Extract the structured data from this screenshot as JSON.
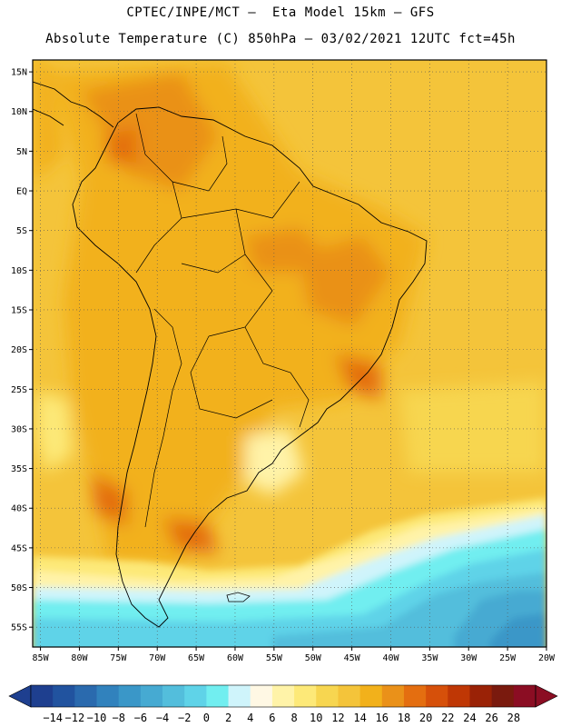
{
  "title": {
    "line1": "CPTEC/INPE/MCT –  Eta Model 15km – GFS",
    "line2": "Absolute Temperature (C) 850hPa – 03/02/2021 12UTC fct=45h"
  },
  "map": {
    "lat_labels": [
      "15N",
      "10N",
      "5N",
      "EQ",
      "5S",
      "10S",
      "15S",
      "20S",
      "25S",
      "30S",
      "35S",
      "40S",
      "45S",
      "50S",
      "55S"
    ],
    "lat_values": [
      15,
      10,
      5,
      0,
      -5,
      -10,
      -15,
      -20,
      -25,
      -30,
      -35,
      -40,
      -45,
      -50,
      -55
    ],
    "lon_labels": [
      "85W",
      "80W",
      "75W",
      "70W",
      "65W",
      "60W",
      "55W",
      "50W",
      "45W",
      "40W",
      "35W",
      "30W",
      "25W",
      "20W"
    ],
    "lon_values": [
      -85,
      -80,
      -75,
      -70,
      -65,
      -60,
      -55,
      -50,
      -45,
      -40,
      -35,
      -30,
      -25,
      -20
    ],
    "lat_range": [
      -57.5,
      16.5
    ],
    "lon_range": [
      -86,
      -20
    ],
    "gridlines": "dotted"
  },
  "colorbar": {
    "labels": [
      "-14",
      "-12",
      "-10",
      "-8",
      "-6",
      "-4",
      "-2",
      "0",
      "2",
      "4",
      "6",
      "8",
      "10",
      "12",
      "14",
      "16",
      "18",
      "20",
      "22",
      "24",
      "26",
      "28"
    ],
    "colors": [
      "#1e3f8f",
      "#21539f",
      "#2a6aae",
      "#3182bd",
      "#3a97c8",
      "#46aad2",
      "#53bedc",
      "#5fd3e8",
      "#71eef0",
      "#cff4fb",
      "#fff8e4",
      "#fff3a8",
      "#fde978",
      "#f7d650",
      "#f4c43a",
      "#f2b11b",
      "#ea9119",
      "#e46e10",
      "#d6500a",
      "#bf3705",
      "#9a2206",
      "#7a1a0e",
      "#8b0d23"
    ],
    "under_color": "#1e3f8f",
    "over_color": "#8b0d23"
  }
}
